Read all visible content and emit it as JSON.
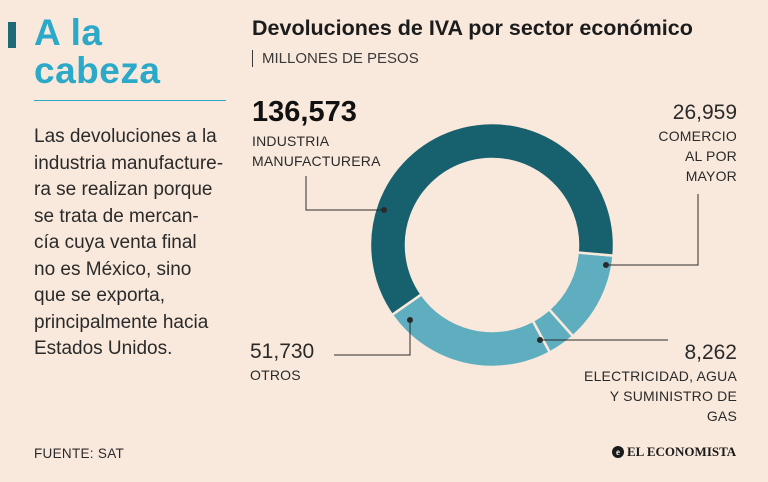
{
  "headline": {
    "line1": "A la",
    "line2": "cabeza"
  },
  "body_lines": [
    "Las devoluciones a la",
    "industria manufacture-",
    "ra se realizan porque",
    "se trata de mercan-",
    "cía cuya venta final",
    "no es México, sino",
    "que se exporta,",
    "principalmente hacia",
    "Estados Unidos."
  ],
  "source": "FUENTE: SAT",
  "brand": {
    "mark": "e",
    "name": "EL ECONOMISTA"
  },
  "colors": {
    "background": "#f9e9dc",
    "accent": "#2aa9c9",
    "industria": "#17606d",
    "light": "#5eaec0"
  },
  "chart_data": {
    "type": "pie",
    "subtype": "donut",
    "title": "Devoluciones de IVA por sector económico",
    "subtitle": "MILLONES DE PESOS",
    "unit": "millones de pesos",
    "slices": [
      {
        "label": "INDUSTRIA MANUFACTURERA",
        "label_lines": [
          "INDUSTRIA",
          "MANUFACTURERA"
        ],
        "value": 136573,
        "display": "136,573",
        "color": "#17606d"
      },
      {
        "label": "COMERCIO AL POR MAYOR",
        "label_lines": [
          "COMERCIO",
          "AL POR",
          "MAYOR"
        ],
        "value": 26959,
        "display": "26,959",
        "color": "#5eaec0"
      },
      {
        "label": "ELECTRICIDAD, AGUA Y SUMINISTRO DE GAS",
        "label_lines": [
          "ELECTRICIDAD, AGUA",
          "Y SUMINISTRO DE",
          "GAS"
        ],
        "value": 8262,
        "display": "8,262",
        "color": "#5eaec0"
      },
      {
        "label": "OTROS",
        "label_lines": [
          "OTROS"
        ],
        "value": 51730,
        "display": "51,730",
        "color": "#5eaec0"
      }
    ]
  }
}
